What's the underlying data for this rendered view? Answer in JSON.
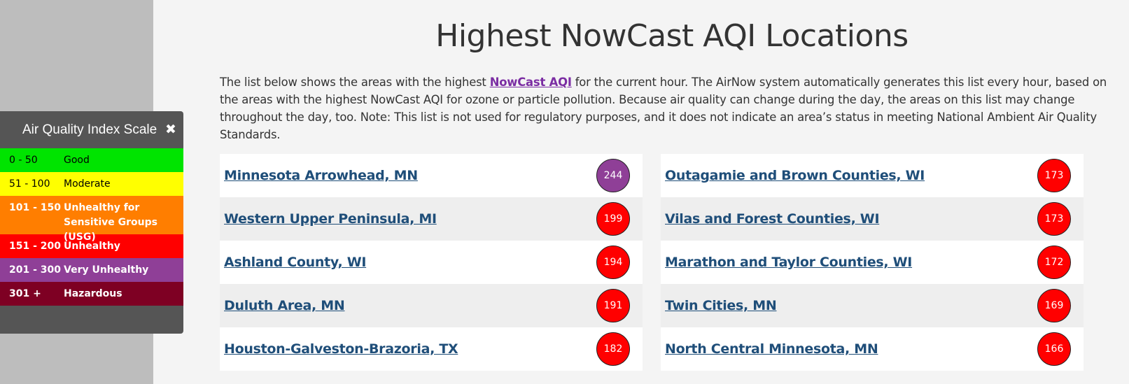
{
  "aqi_scale": {
    "title": "Air Quality Index Scale",
    "close_icon": "close-icon",
    "levels": [
      {
        "range": "0 - 50",
        "label": "Good",
        "color": "#00e400",
        "text_color": "#000000"
      },
      {
        "range": "51 - 100",
        "label": "Moderate",
        "color": "#ffff00",
        "text_color": "#000000"
      },
      {
        "range": "101 - 150",
        "label": "Unhealthy for Sensitive Groups (USG)",
        "color": "#ff7e00",
        "text_color": "#ffffff"
      },
      {
        "range": "151 - 200",
        "label": "Unhealthy",
        "color": "#ff0000",
        "text_color": "#ffffff"
      },
      {
        "range": "201 - 300",
        "label": "Very Unhealthy",
        "color": "#8f3f97",
        "text_color": "#ffffff"
      },
      {
        "range": "301 +",
        "label": "Hazardous",
        "color": "#7e0023",
        "text_color": "#ffffff"
      }
    ]
  },
  "page": {
    "title": "Highest NowCast AQI Locations",
    "intro_before": "The list below shows the areas with the highest ",
    "intro_link": "NowCast AQI",
    "intro_after": " for the current hour. The AirNow system automatically generates this list every hour, based on the areas with the highest NowCast AQI for ozone or particle pollution. Because air quality can change during the day, the areas on this list may change throughout the day, too. Note: This list is not used for regulatory purposes, and it does not indicate an area’s status in meeting National Ambient Air Quality Standards."
  },
  "locations_left": [
    {
      "name": "Minnesota Arrowhead, MN",
      "aqi": "244",
      "color": "#8f3f97"
    },
    {
      "name": "Western Upper Peninsula, MI",
      "aqi": "199",
      "color": "#ff0000"
    },
    {
      "name": "Ashland County, WI",
      "aqi": "194",
      "color": "#ff0000"
    },
    {
      "name": "Duluth Area, MN",
      "aqi": "191",
      "color": "#ff0000"
    },
    {
      "name": "Houston-Galveston-Brazoria, TX",
      "aqi": "182",
      "color": "#ff0000"
    }
  ],
  "locations_right": [
    {
      "name": "Outagamie and Brown Counties, WI",
      "aqi": "173",
      "color": "#ff0000"
    },
    {
      "name": "Vilas and Forest Counties, WI",
      "aqi": "173",
      "color": "#ff0000"
    },
    {
      "name": "Marathon and Taylor Counties, WI",
      "aqi": "172",
      "color": "#ff0000"
    },
    {
      "name": "Twin Cities, MN",
      "aqi": "169",
      "color": "#ff0000"
    },
    {
      "name": "North Central Minnesota, MN",
      "aqi": "166",
      "color": "#ff0000"
    }
  ]
}
